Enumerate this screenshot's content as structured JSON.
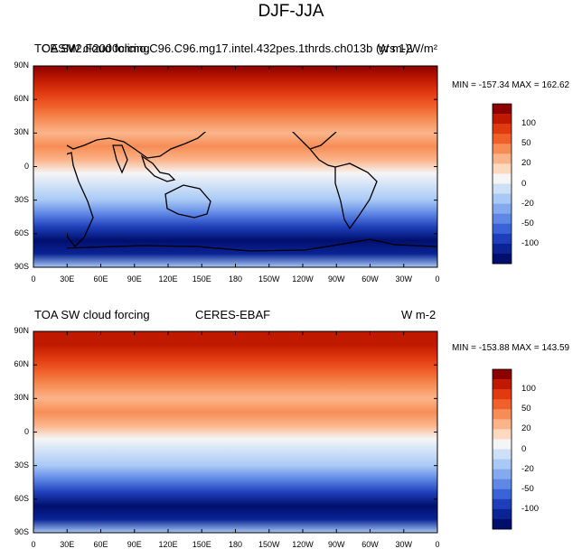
{
  "figure": {
    "title": "DJF-JJA",
    "lat_labels": [
      "90N",
      "60N",
      "30N",
      "0",
      "30S",
      "60S",
      "90S"
    ],
    "lon_labels": [
      "0",
      "30E",
      "60E",
      "90E",
      "120E",
      "150E",
      "180",
      "150W",
      "120W",
      "90W",
      "60W",
      "30W",
      "0"
    ],
    "colorbar_labels": [
      "100",
      "50",
      "20",
      "0",
      "-20",
      "-50",
      "-100"
    ],
    "colorbar_colors": [
      "#8c0000",
      "#bf1a00",
      "#e03a10",
      "#f0602a",
      "#f78d56",
      "#fbb48a",
      "#fdd9c0",
      "#f5f5f5",
      "#cde0f7",
      "#a8c8f5",
      "#84a9ee",
      "#5f88e6",
      "#3b63d8",
      "#1f3fba",
      "#0a2494",
      "#000f6e"
    ],
    "panels": [
      {
        "left_title": "TOA SW cloud forcing",
        "center_title": "CESM2.F2000climo.C96.C96.mg17.intel.432pes.1thrds.ch013b (yrs 1)",
        "right_title": "W m-2",
        "right_title_overlap": "W/m²",
        "min_max": "MIN = -157.34 MAX = 162.62",
        "zonal_profile": [
          0.95,
          0.85,
          0.7,
          0.55,
          0.45,
          0.38,
          0.42,
          0.35,
          0.1,
          -0.05,
          -0.2,
          -0.45,
          -0.75,
          -1.0,
          -0.85,
          -0.2
        ]
      },
      {
        "left_title": "TOA SW cloud forcing",
        "center_title": "CERES-EBAF",
        "right_title": "W m-2",
        "min_max": "MIN = -153.88 MAX = 143.59",
        "zonal_profile": [
          0.9,
          0.8,
          0.68,
          0.55,
          0.45,
          0.4,
          0.42,
          0.32,
          0.08,
          -0.05,
          -0.22,
          -0.45,
          -0.72,
          -0.95,
          -0.8,
          -0.2
        ]
      }
    ]
  }
}
